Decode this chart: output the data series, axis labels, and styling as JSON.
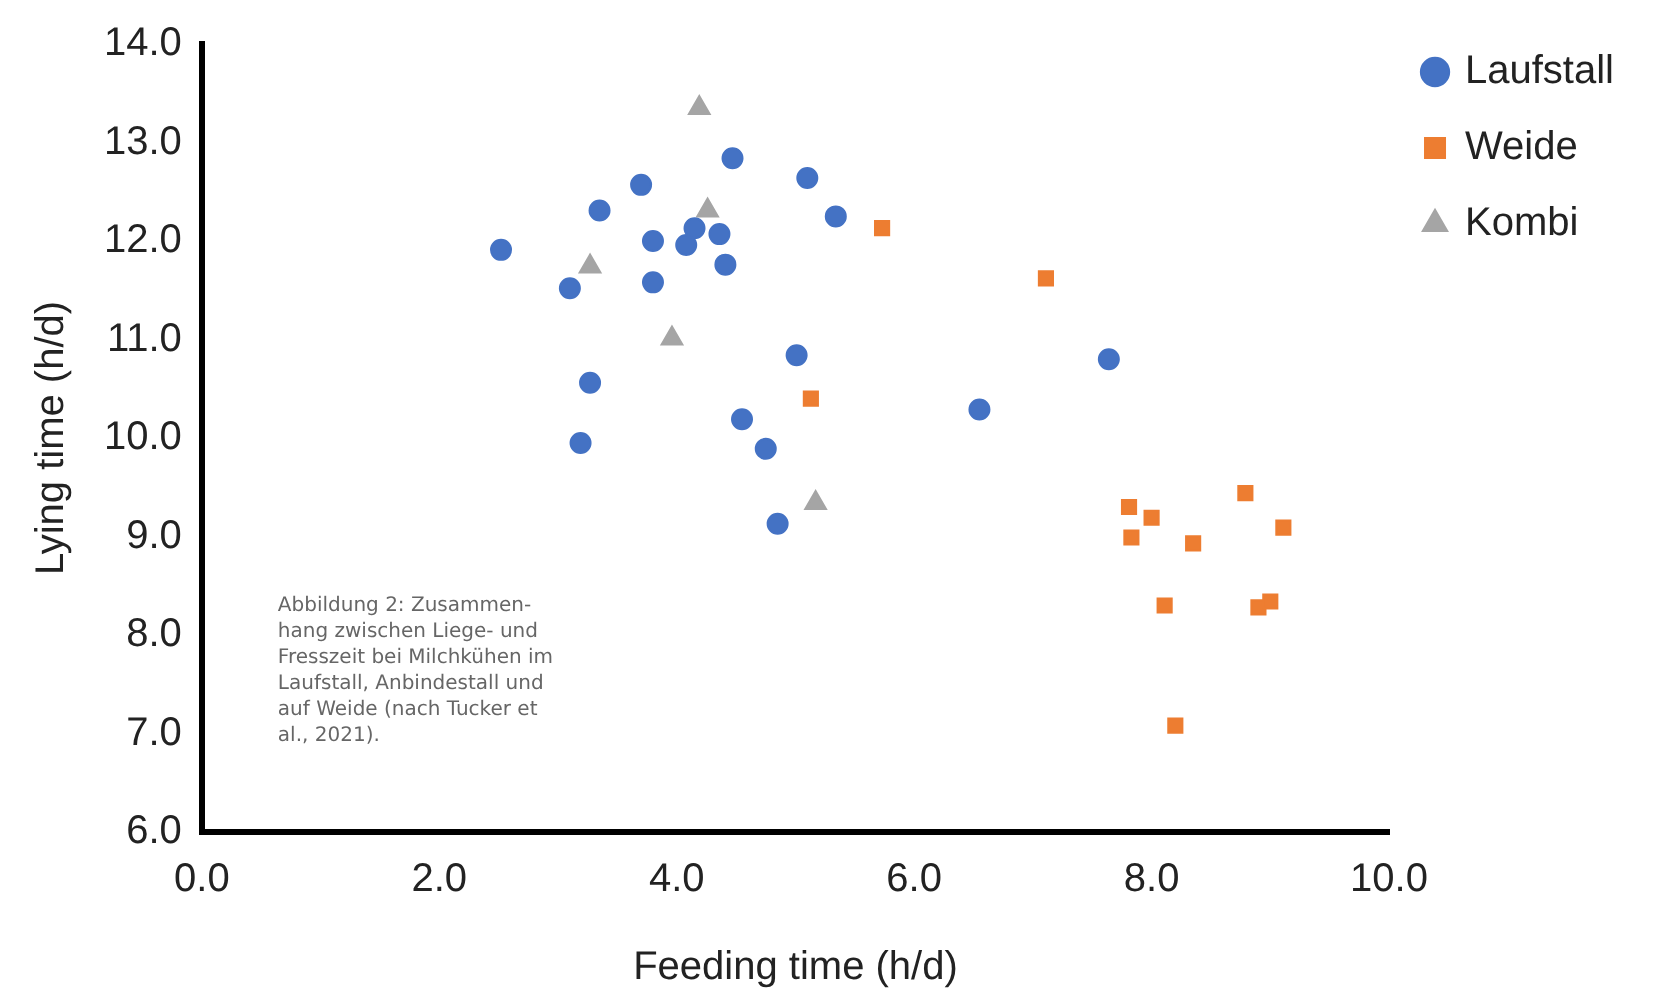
{
  "chart_data": {
    "type": "scatter",
    "xlabel": "Feeding time (h/d)",
    "ylabel": "Lying time (h/d)",
    "xlim": [
      0,
      10
    ],
    "xticks": [
      {
        "value": 0,
        "label": "0.0"
      },
      {
        "value": 2,
        "label": "2.0"
      },
      {
        "value": 4,
        "label": "4.0"
      },
      {
        "value": 6,
        "label": "6.0"
      },
      {
        "value": 8,
        "label": "8.0"
      },
      {
        "value": 10,
        "label": "10.0"
      }
    ],
    "ylim": [
      6,
      14
    ],
    "yticks": [
      {
        "value": 6,
        "label": "6.0"
      },
      {
        "value": 7,
        "label": "7.0"
      },
      {
        "value": 8,
        "label": "8.0"
      },
      {
        "value": 9,
        "label": "9.0"
      },
      {
        "value": 10,
        "label": "10.0"
      },
      {
        "value": 11,
        "label": "11.0"
      },
      {
        "value": 12,
        "label": "12.0"
      },
      {
        "value": 13,
        "label": "13.0"
      },
      {
        "value": 14,
        "label": "14.0"
      }
    ],
    "grid": false,
    "legend": "right",
    "series": [
      {
        "name": "Laufstall",
        "color": "#4472c4",
        "marker": "circle",
        "x": [
          2.52,
          3.1,
          3.35,
          3.7,
          3.8,
          3.8,
          4.08,
          4.15,
          4.36,
          4.41,
          4.47,
          5.1,
          5.34,
          5.01,
          3.27,
          3.19,
          4.55,
          4.75,
          4.85,
          7.64,
          6.55
        ],
        "values": [
          11.91,
          11.52,
          12.31,
          12.57,
          12.0,
          11.58,
          11.96,
          12.13,
          12.07,
          11.76,
          12.84,
          12.64,
          12.25,
          10.84,
          10.56,
          9.95,
          10.19,
          9.89,
          9.13,
          10.8,
          10.29
        ]
      },
      {
        "name": "Weide",
        "color": "#ed7d31",
        "marker": "square",
        "x": [
          5.73,
          7.11,
          5.13,
          7.81,
          8.0,
          7.83,
          8.35,
          8.79,
          9.11,
          8.11,
          8.9,
          9.0,
          8.2
        ],
        "values": [
          12.13,
          11.62,
          10.4,
          9.3,
          9.19,
          8.99,
          8.93,
          9.44,
          9.09,
          8.3,
          8.28,
          8.34,
          7.08
        ]
      },
      {
        "name": "Kombi",
        "color": "#a5a5a5",
        "marker": "triangle",
        "x": [
          4.19,
          4.26,
          3.27,
          3.96,
          5.17
        ],
        "values": [
          13.35,
          12.31,
          11.74,
          11.01,
          9.34
        ]
      }
    ],
    "annotations": [
      "Abbildung 2: Zusammen-\nhang zwischen Liege- und\nFresszeit bei Milchkühen im\nLaufstall, Anbindestall und\nauf Weide (nach Tucker et\nal., 2021)."
    ]
  }
}
